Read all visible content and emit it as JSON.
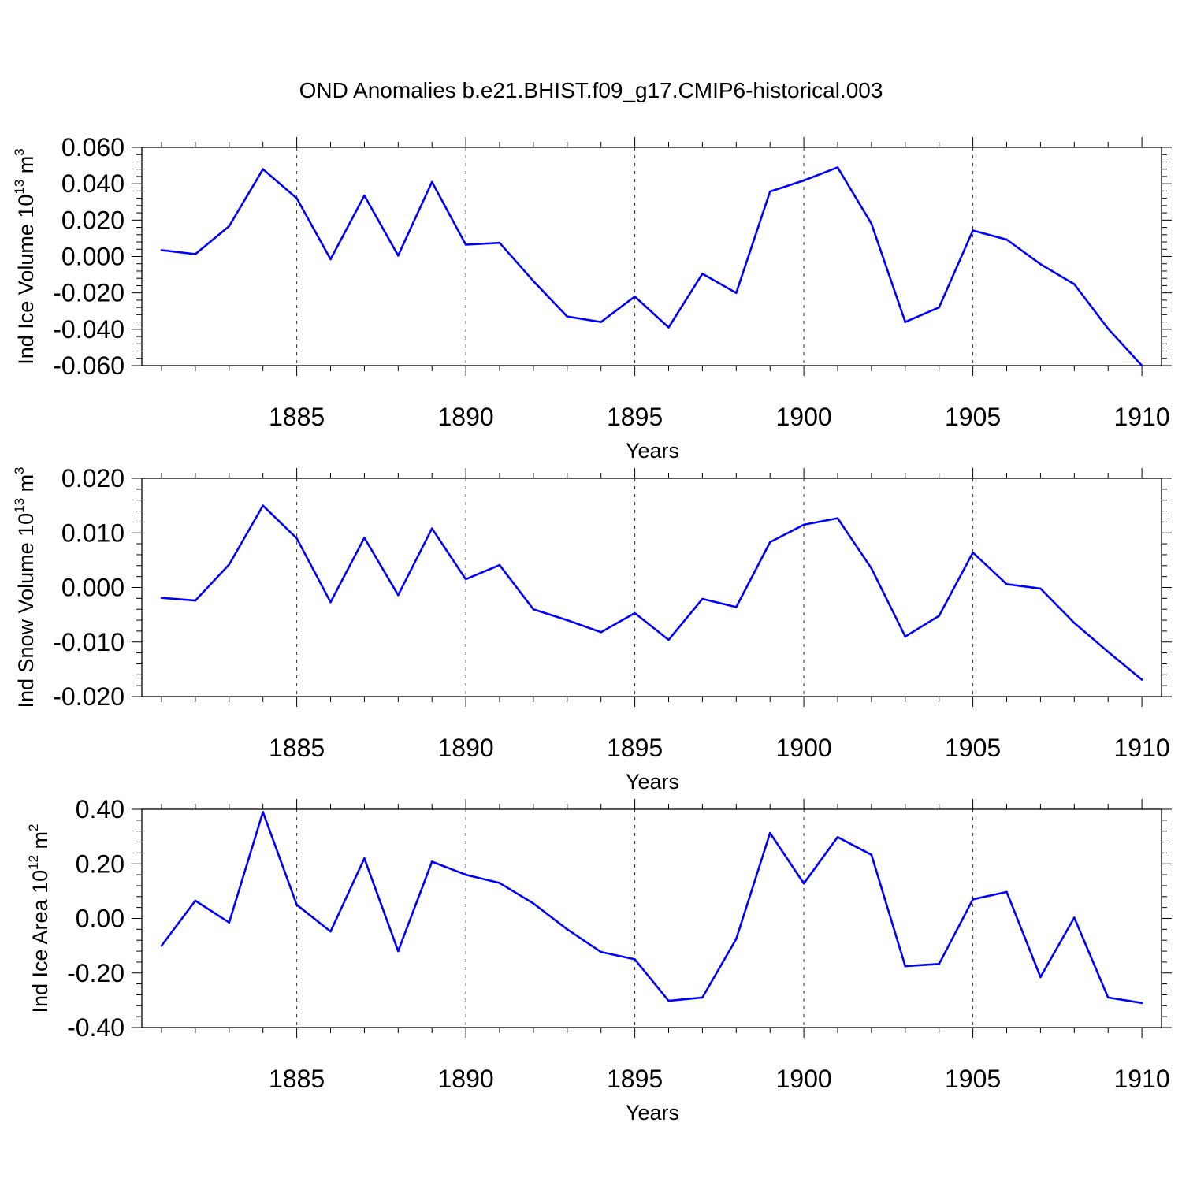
{
  "figure": {
    "title": "OND Anomalies b.e21.BHIST.f09_g17.CMIP6-historical.003"
  },
  "chart_data": [
    {
      "type": "line",
      "ylabel": "Ind Ice Volume 10^13 m^3",
      "ylabel_base": "Ind Ice Volume 10",
      "ylabel_exp": "13",
      "ylabel_unit": " m",
      "ylabel_unit_exp": "3",
      "xlabel": "Years",
      "xlim": [
        1881,
        1910
      ],
      "ylim": [
        -0.06,
        0.06
      ],
      "x_ticks": [
        1885,
        1890,
        1895,
        1900,
        1905,
        1910
      ],
      "y_ticks": [
        0.06,
        0.04,
        0.02,
        0.0,
        -0.02,
        -0.04,
        -0.06
      ],
      "y_tick_labels": [
        "0.060",
        "0.040",
        "0.020",
        "0.000",
        "-0.020",
        "-0.040",
        "-0.060"
      ],
      "grid": "vertical dashed at labeled years",
      "color": "#0000ff",
      "x": [
        1881,
        1882,
        1883,
        1884,
        1885,
        1886,
        1887,
        1888,
        1889,
        1890,
        1891,
        1892,
        1893,
        1894,
        1895,
        1896,
        1897,
        1898,
        1899,
        1900,
        1901,
        1902,
        1903,
        1904,
        1905,
        1906,
        1907,
        1908,
        1909,
        1910
      ],
      "values": [
        0.0035,
        0.0013,
        0.0167,
        0.048,
        0.032,
        -0.0015,
        0.0335,
        0.0005,
        0.041,
        0.0065,
        0.0075,
        -0.0135,
        -0.033,
        -0.036,
        -0.022,
        -0.039,
        -0.0095,
        -0.02,
        0.0357,
        0.0418,
        0.049,
        0.018,
        -0.036,
        -0.028,
        0.0143,
        0.0093,
        -0.0042,
        -0.0152,
        -0.0397,
        -0.06
      ]
    },
    {
      "type": "line",
      "ylabel": "Ind Snow Volume 10^13 m^3",
      "ylabel_base": "Ind Snow Volume 10",
      "ylabel_exp": "13",
      "ylabel_unit": " m",
      "ylabel_unit_exp": "3",
      "xlabel": "Years",
      "xlim": [
        1881,
        1910
      ],
      "ylim": [
        -0.02,
        0.02
      ],
      "x_ticks": [
        1885,
        1890,
        1895,
        1900,
        1905,
        1910
      ],
      "y_ticks": [
        0.02,
        0.01,
        0.0,
        -0.01,
        -0.02
      ],
      "y_tick_labels": [
        "0.020",
        "0.010",
        "0.000",
        "-0.010",
        "-0.020"
      ],
      "grid": "vertical dashed at labeled years",
      "color": "#0000ff",
      "x": [
        1881,
        1882,
        1883,
        1884,
        1885,
        1886,
        1887,
        1888,
        1889,
        1890,
        1891,
        1892,
        1893,
        1894,
        1895,
        1896,
        1897,
        1898,
        1899,
        1900,
        1901,
        1902,
        1903,
        1904,
        1905,
        1906,
        1907,
        1908,
        1909,
        1910
      ],
      "values": [
        -0.0019,
        -0.0024,
        0.0042,
        0.015,
        0.009,
        -0.0027,
        0.0091,
        -0.0014,
        0.0108,
        0.0015,
        0.0041,
        -0.004,
        -0.006,
        -0.0082,
        -0.0047,
        -0.0096,
        -0.0021,
        -0.0036,
        0.0083,
        0.0115,
        0.0127,
        0.0035,
        -0.009,
        -0.0052,
        0.0064,
        0.0006,
        -0.0002,
        -0.0065,
        -0.0118,
        -0.0169
      ]
    },
    {
      "type": "line",
      "ylabel": "Ind Ice Area 10^12 m^2",
      "ylabel_base": "Ind Ice Area 10",
      "ylabel_exp": "12",
      "ylabel_unit": " m",
      "ylabel_unit_exp": "2",
      "xlabel": "Years",
      "xlim": [
        1881,
        1910
      ],
      "ylim": [
        -0.4,
        0.4
      ],
      "x_ticks": [
        1885,
        1890,
        1895,
        1900,
        1905,
        1910
      ],
      "y_ticks": [
        0.4,
        0.2,
        0.0,
        -0.2,
        -0.4
      ],
      "y_tick_labels": [
        "0.40",
        "0.20",
        "0.00",
        "-0.20",
        "-0.40"
      ],
      "grid": "vertical dashed at labeled years",
      "color": "#0000ff",
      "x": [
        1881,
        1882,
        1883,
        1884,
        1885,
        1886,
        1887,
        1888,
        1889,
        1890,
        1891,
        1892,
        1893,
        1894,
        1895,
        1896,
        1897,
        1898,
        1899,
        1900,
        1901,
        1902,
        1903,
        1904,
        1905,
        1906,
        1907,
        1908,
        1909,
        1910
      ],
      "values": [
        -0.1,
        0.065,
        -0.015,
        0.39,
        0.05,
        -0.048,
        0.22,
        -0.12,
        0.208,
        0.16,
        0.13,
        0.055,
        -0.04,
        -0.123,
        -0.15,
        -0.302,
        -0.29,
        -0.075,
        0.313,
        0.128,
        0.298,
        0.233,
        -0.175,
        -0.167,
        0.07,
        0.097,
        -0.215,
        0.003,
        -0.29,
        -0.31
      ]
    }
  ]
}
